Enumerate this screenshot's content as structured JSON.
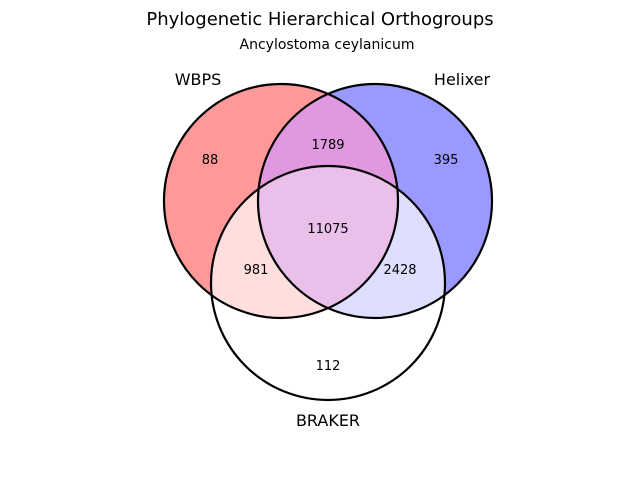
{
  "title": "Phylogenetic Hierarchical Orthogroups",
  "subtitle": "Ancylostoma ceylanicum",
  "sets": {
    "wbps": {
      "label": "WBPS",
      "color": "#ff9999"
    },
    "helixer": {
      "label": "Helixer",
      "color": "#9999ff"
    },
    "braker": {
      "label": "BRAKER",
      "color": "#ffffff"
    }
  },
  "regions": {
    "wbps_only": "88",
    "helixer_only": "395",
    "braker_only": "112",
    "wbps_helixer": "1789",
    "wbps_braker": "981",
    "helixer_braker": "2428",
    "all_three": "11075"
  },
  "region_colors": {
    "wbps_helixer": "#e099e0",
    "wbps_braker": "#ffdede",
    "helixer_braker": "#dedeff",
    "all_three": "#eac0ea",
    "outline": "#000000"
  }
}
